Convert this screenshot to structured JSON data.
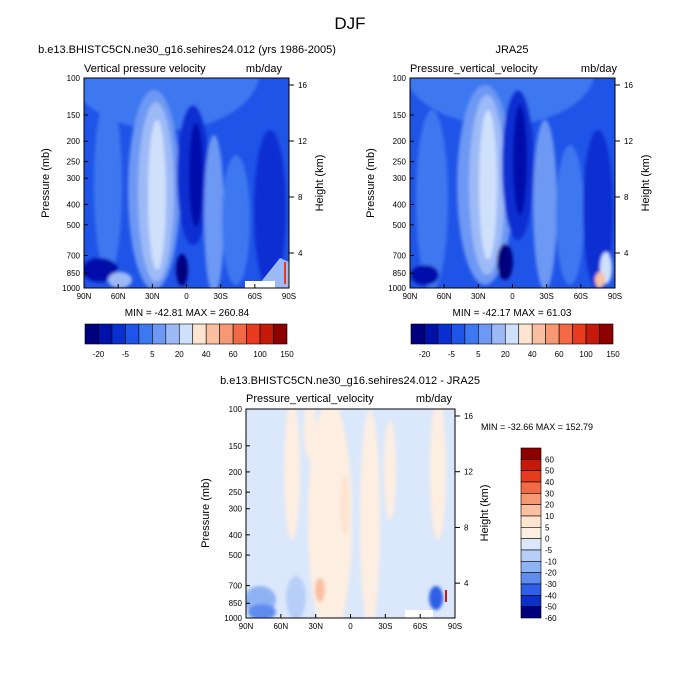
{
  "figure_title": "DJF",
  "chart_data": [
    {
      "type": "heatmap",
      "title": "b.e13.BHISTC5CN.ne30_g16.sehires24.012 (yrs 1986-2005)",
      "subtitle_left": "Vertical pressure velocity",
      "subtitle_right": "mb/day",
      "ylabel": "Pressure (mb)",
      "ylabel_right": "Height (km)",
      "x_ticks": [
        "90N",
        "60N",
        "30N",
        "0",
        "30S",
        "60S",
        "90S"
      ],
      "y_ticks": [
        "100",
        "150",
        "200",
        "250",
        "300",
        "400",
        "500",
        "700",
        "850",
        "1000"
      ],
      "y_right_ticks": [
        "16",
        "12",
        "8",
        "4"
      ],
      "stats": "MIN = -42.81   MAX = 260.84",
      "colorbar_labels": [
        "-20",
        "-5",
        "5",
        "20",
        "40",
        "60",
        "100",
        "150"
      ]
    },
    {
      "type": "heatmap",
      "title": "JRA25",
      "subtitle_left": "Pressure_vertical_velocity",
      "subtitle_right": "mb/day",
      "ylabel": "Pressure (mb)",
      "ylabel_right": "Height (km)",
      "x_ticks": [
        "90N",
        "60N",
        "30N",
        "0",
        "30S",
        "60S",
        "90S"
      ],
      "y_ticks": [
        "100",
        "150",
        "200",
        "250",
        "300",
        "400",
        "500",
        "700",
        "850",
        "1000"
      ],
      "y_right_ticks": [
        "16",
        "12",
        "8",
        "4"
      ],
      "stats": "MIN = -42.17   MAX =  61.03",
      "colorbar_labels": [
        "-20",
        "-5",
        "5",
        "20",
        "40",
        "60",
        "100",
        "150"
      ]
    },
    {
      "type": "heatmap",
      "title": "b.e13.BHISTC5CN.ne30_g16.sehires24.012 - JRA25",
      "subtitle_left": "Pressure_vertical_velocity",
      "subtitle_right": "mb/day",
      "ylabel": "Pressure (mb)",
      "ylabel_right": "Height (km)",
      "x_ticks": [
        "90N",
        "60N",
        "30N",
        "0",
        "30S",
        "60S",
        "90S"
      ],
      "y_ticks": [
        "100",
        "150",
        "200",
        "250",
        "300",
        "400",
        "500",
        "700",
        "850",
        "1000"
      ],
      "y_right_ticks": [
        "16",
        "12",
        "8",
        "4"
      ],
      "stats": "MIN = -32.66  MAX = 152.79",
      "colorbar_labels": [
        "60",
        "50",
        "40",
        "30",
        "20",
        "10",
        "5",
        "0",
        "-5",
        "-10",
        "-20",
        "-30",
        "-40",
        "-50",
        "-60"
      ]
    }
  ],
  "colors": {
    "abs_palette": [
      "#00007f",
      "#0011aa",
      "#0a2fd1",
      "#1f54e8",
      "#3d78f0",
      "#6d98f3",
      "#9dbaf7",
      "#cfe0fb",
      "#fde4d0",
      "#f9bfa0",
      "#f69873",
      "#f26a45",
      "#e83a1d",
      "#c51a0a",
      "#8d0000"
    ],
    "diff_palette": [
      "#8d0000",
      "#c51a0a",
      "#e83a1d",
      "#f26a45",
      "#f69873",
      "#f9bfa0",
      "#fde4d0",
      "#fdeee2",
      "#dbe8fb",
      "#b7cff7",
      "#8fb2f3",
      "#5f8cee",
      "#2f5fe6",
      "#0c2fc8",
      "#00007f"
    ],
    "light_blue": "#cfe0fb",
    "light_peach": "#fde6d2"
  }
}
